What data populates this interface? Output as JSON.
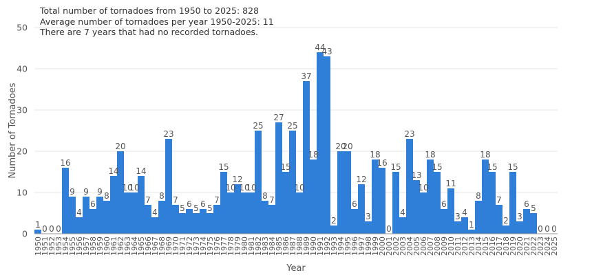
{
  "chart_data": {
    "type": "bar",
    "title": "",
    "annotations": [
      "Total number of tornadoes from 1950 to 2025: 828",
      "Average number of tornadoes per year 1950-2025: 11",
      "There are 7 years that had no recorded tornadoes."
    ],
    "xlabel": "Year",
    "ylabel": "Number of Tornadoes",
    "ylim": [
      0,
      50
    ],
    "yticks": [
      0,
      10,
      20,
      30,
      40,
      50
    ],
    "grid": true,
    "legend": "none",
    "bar_color": "#2f7ed8",
    "categories": [
      "1950",
      "1951",
      "1952",
      "1953",
      "1954",
      "1955",
      "1956",
      "1957",
      "1958",
      "1959",
      "1960",
      "1961",
      "1962",
      "1963",
      "1964",
      "1965",
      "1966",
      "1967",
      "1968",
      "1969",
      "1970",
      "1971",
      "1972",
      "1973",
      "1974",
      "1975",
      "1976",
      "1977",
      "1978",
      "1979",
      "1980",
      "1981",
      "1982",
      "1983",
      "1984",
      "1985",
      "1986",
      "1987",
      "1988",
      "1989",
      "1990",
      "1991",
      "1992",
      "1993",
      "1994",
      "1995",
      "1996",
      "1997",
      "1998",
      "1999",
      "2000",
      "2001",
      "2002",
      "2003",
      "2004",
      "2005",
      "2006",
      "2007",
      "2008",
      "2009",
      "2010",
      "2011",
      "2012",
      "2013",
      "2014",
      "2015",
      "2016",
      "2017",
      "2018",
      "2019",
      "2020",
      "2021",
      "2022",
      "2023",
      "2024",
      "2025"
    ],
    "values": [
      1,
      0,
      0,
      0,
      16,
      9,
      4,
      9,
      6,
      9,
      8,
      14,
      20,
      10,
      10,
      14,
      7,
      4,
      8,
      23,
      7,
      5,
      6,
      5,
      6,
      5,
      7,
      15,
      10,
      12,
      10,
      10,
      25,
      8,
      7,
      27,
      15,
      25,
      10,
      37,
      18,
      44,
      43,
      2,
      20,
      20,
      6,
      12,
      3,
      18,
      16,
      0,
      15,
      4,
      23,
      13,
      10,
      18,
      15,
      6,
      11,
      3,
      4,
      1,
      8,
      18,
      15,
      7,
      2,
      15,
      3,
      6,
      5,
      0,
      0,
      0
    ]
  }
}
